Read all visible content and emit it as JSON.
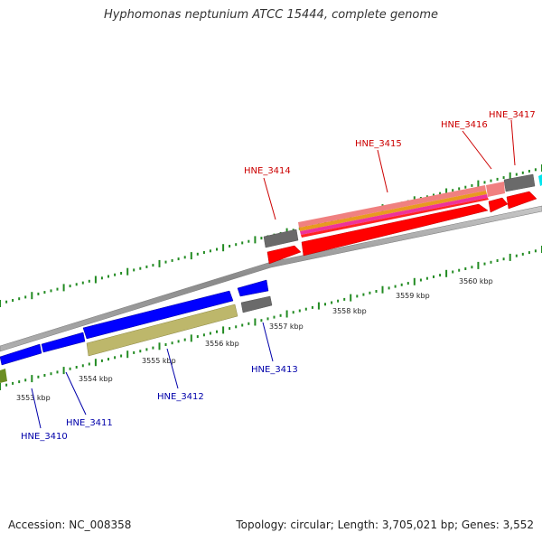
{
  "title": "Hyphomonas neptunium ATCC 15444, complete genome",
  "footer": {
    "accession": "Accession: NC_008358",
    "summary": "Topology: circular; Length: 3,705,021 bp; Genes: 3,552"
  },
  "scale": {
    "unit": "kbp",
    "ticks_lower": [
      "3553 kbp",
      "3554 kbp",
      "3555 kbp",
      "3556 kbp",
      "3557 kbp"
    ],
    "ticks_upper": [
      "3558 kbp",
      "3559 kbp",
      "3560 kbp"
    ]
  },
  "genes_forward": [
    {
      "label": "HNE_3414",
      "color": "#cc0000"
    },
    {
      "label": "HNE_3415",
      "color": "#cc0000"
    },
    {
      "label": "HNE_3416",
      "color": "#cc0000"
    },
    {
      "label": "HNE_3417",
      "color": "#cc0000"
    }
  ],
  "genes_reverse": [
    {
      "label": "HNE_3410",
      "color": "#0000aa"
    },
    {
      "label": "HNE_3411",
      "color": "#0000aa"
    },
    {
      "label": "HNE_3412",
      "color": "#0000aa"
    },
    {
      "label": "HNE_3413",
      "color": "#0000aa"
    }
  ],
  "feature_colors": {
    "cds_forward": "#ff0000",
    "cds_reverse": "#0000ff",
    "gene": "#777777",
    "rna_khaki": "#bdb76b",
    "backbone": "#999999",
    "tick": "#228b22",
    "cyan": "#00e5ee",
    "olive": "#6b8e23"
  }
}
